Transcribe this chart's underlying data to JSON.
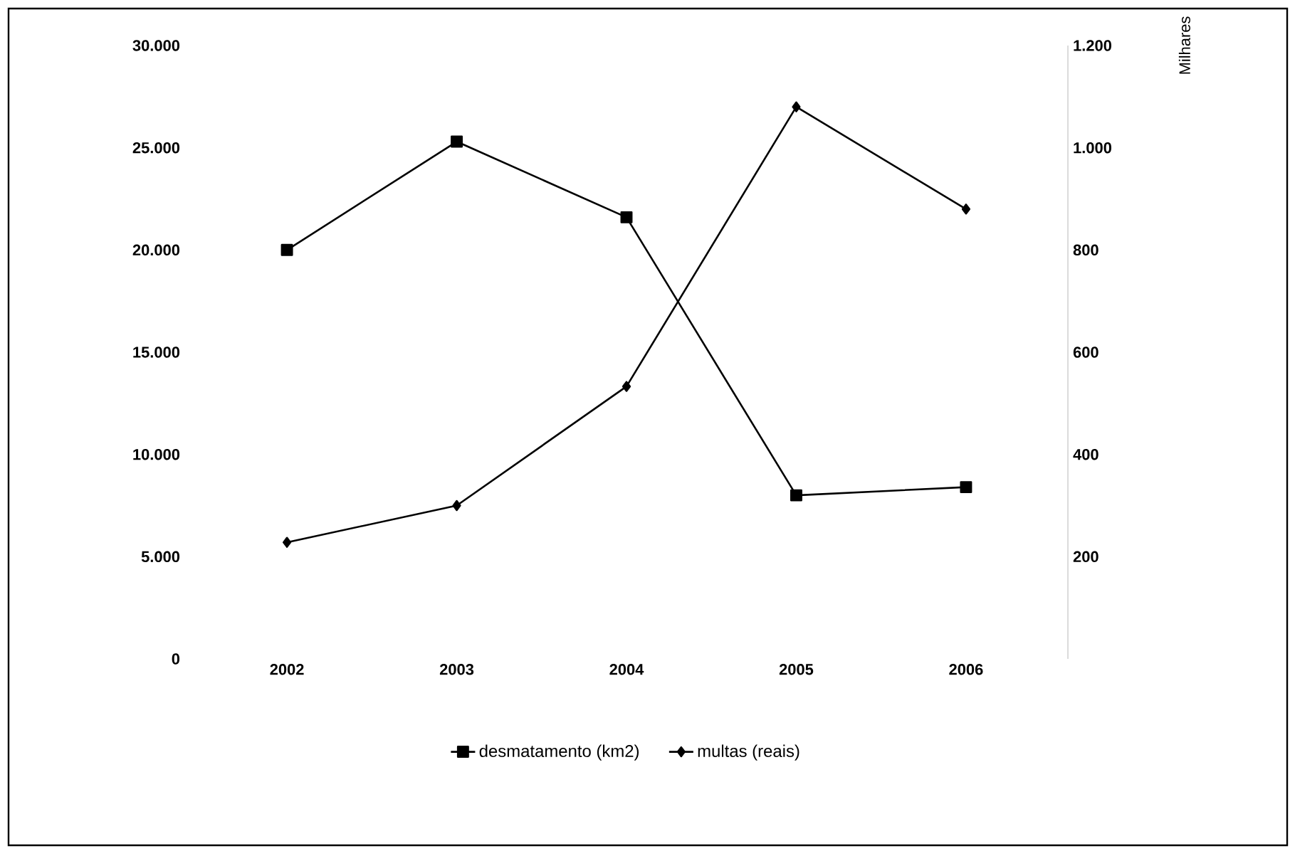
{
  "chart_data": {
    "type": "line",
    "categories": [
      "2002",
      "2003",
      "2004",
      "2005",
      "2006"
    ],
    "series": [
      {
        "name": "desmatamento (km2)",
        "color": "#000000",
        "marker": "square",
        "values": [
          20000,
          25300,
          21600,
          8000,
          8400
        ]
      },
      {
        "name": "multas (reais)",
        "color": "#000000",
        "marker": "diamond",
        "axis": "y2",
        "values": [
          228,
          300,
          533,
          1080,
          880
        ]
      }
    ],
    "ylim": [
      0,
      30000
    ],
    "yticks": [
      0,
      {
        "value": 5000,
        "label": "5.000"
      },
      {
        "value": 10000,
        "label": "10.000"
      },
      {
        "value": 15000,
        "label": "15.000"
      },
      {
        "value": 20000,
        "label": "20.000"
      },
      {
        "value": 25000,
        "label": "25.000"
      },
      {
        "value": 30000,
        "label": "30.000"
      }
    ],
    "y2lim": [
      0,
      1200
    ],
    "y2ticks": [
      200,
      400,
      600,
      800,
      {
        "value": 1000,
        "label": "1.000"
      },
      {
        "value": 1200,
        "label": "1.200"
      }
    ],
    "y2label": "Milhares",
    "line_style": "solid",
    "grid": false,
    "legend": "bottom"
  }
}
